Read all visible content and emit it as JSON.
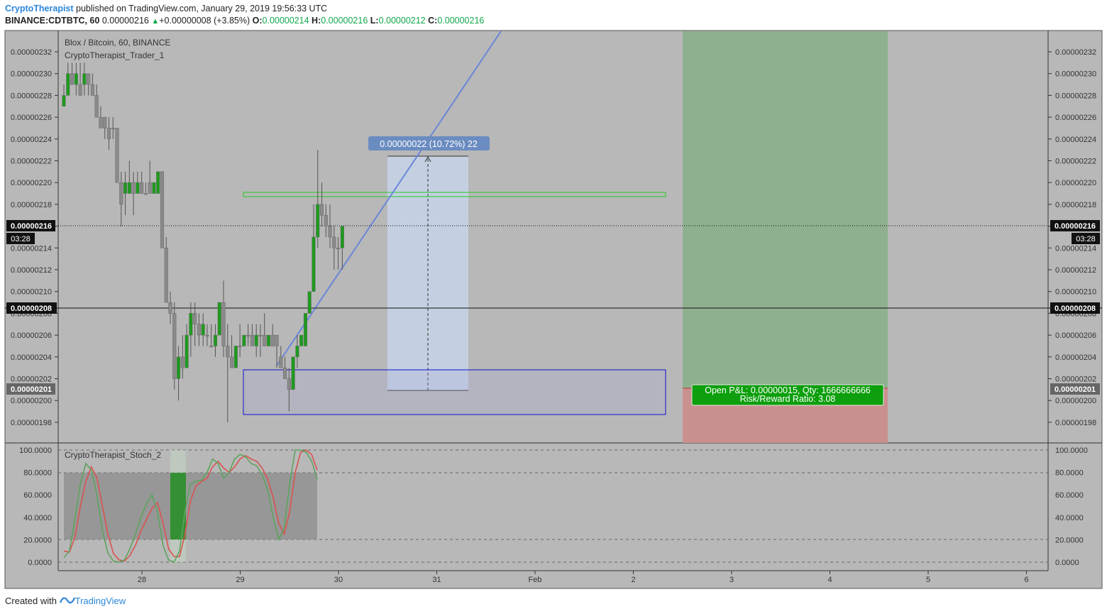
{
  "header": {
    "author": "CryptoTherapist",
    "published": "published on TradingView.com, January 29, 2019 19:56:33 UTC",
    "symbol": "BINANCE:CDTBTC, 60",
    "last": "0.00000216",
    "change": "+0.00000008 (+3.85%)",
    "o_label": "O:",
    "o": "0.00000214",
    "h_label": "H:",
    "h": "0.00000216",
    "l_label": "L:",
    "l": "0.00000212",
    "c_label": "C:",
    "c": "0.00000216"
  },
  "footer": {
    "created": "Created with",
    "brand": "TradingView"
  },
  "main_pane": {
    "title": "Blox / Bitcoin, 60, BINANCE",
    "indicator": "CryptoTherapist_Trader_1",
    "price_ticks": [
      "0.00000232",
      "0.00000230",
      "0.00000228",
      "0.00000226",
      "0.00000224",
      "0.00000222",
      "0.00000220",
      "0.00000218",
      "0.00000216",
      "0.00000214",
      "0.00000212",
      "0.00000210",
      "0.00000208",
      "0.00000206",
      "0.00000204",
      "0.00000202",
      "0.00000200",
      "0.00000198"
    ],
    "current_price_label": "0.00000216",
    "countdown": "03:28",
    "level_label": "0.00000208",
    "entry_label": "0.00000201",
    "measure_label": "0.00000022 (10.72%) 22",
    "pnl_line1": "Open P&L: 0.00000015, Qty: 1666666666",
    "pnl_line2": "Risk/Reward Ratio: 3.08"
  },
  "sub_pane": {
    "indicator": "CryptoTherapist_Stoch_2",
    "ticks": [
      "100.0000",
      "80.0000",
      "60.0000",
      "40.0000",
      "20.0000",
      "0.0000"
    ]
  },
  "x_axis": {
    "ticks": [
      "28",
      "29",
      "30",
      "31",
      "Feb",
      "2",
      "3",
      "4",
      "5",
      "6"
    ]
  },
  "colors": {
    "background": "#b8b8b8",
    "candle_down": "#8a8a8a",
    "candle_up": "#1e9a1e",
    "stoch_k": "#5ea35e",
    "stoch_d": "#d9534f",
    "target_zone": "#8fb08f",
    "stop_zone": "#c99090",
    "pnl_box": "#0d9f0d",
    "measure_fill": "#c8d8f0",
    "measure_label": "#6a8cc0",
    "trendline": "#6b86d8"
  },
  "chart_data": {
    "type": "candlestick",
    "title": "Blox / Bitcoin, 60, BINANCE",
    "ylim": [
      1.96e-06,
      2.34e-06
    ],
    "candles_ohlc": [
      [
        2.27e-06,
        2.29e-06,
        2.27e-06,
        2.28e-06
      ],
      [
        2.28e-06,
        2.31e-06,
        2.28e-06,
        2.3e-06
      ],
      [
        2.3e-06,
        2.31e-06,
        2.29e-06,
        2.29e-06
      ],
      [
        2.29e-06,
        2.31e-06,
        2.28e-06,
        2.3e-06
      ],
      [
        2.29e-06,
        2.31e-06,
        2.28e-06,
        2.28e-06
      ],
      [
        2.29e-06,
        2.31e-06,
        2.28e-06,
        2.3e-06
      ],
      [
        2.3e-06,
        2.3e-06,
        2.28e-06,
        2.29e-06
      ],
      [
        2.29e-06,
        2.3e-06,
        2.28e-06,
        2.28e-06
      ],
      [
        2.28e-06,
        2.29e-06,
        2.26e-06,
        2.26e-06
      ],
      [
        2.26e-06,
        2.27e-06,
        2.25e-06,
        2.25e-06
      ],
      [
        2.26e-06,
        2.26e-06,
        2.24e-06,
        2.25e-06
      ],
      [
        2.25e-06,
        2.26e-06,
        2.23e-06,
        2.24e-06
      ],
      [
        2.25e-06,
        2.26e-06,
        2.24e-06,
        2.25e-06
      ],
      [
        2.25e-06,
        2.25e-06,
        2.2e-06,
        2.2e-06
      ],
      [
        2.2e-06,
        2.21e-06,
        2.16e-06,
        2.18e-06
      ],
      [
        2.19e-06,
        2.21e-06,
        2.17e-06,
        2.2e-06
      ],
      [
        2.19e-06,
        2.22e-06,
        2.19e-06,
        2.2e-06
      ],
      [
        2.2e-06,
        2.21e-06,
        2.17e-06,
        2.19e-06
      ],
      [
        2.19e-06,
        2.21e-06,
        2.19e-06,
        2.2e-06
      ],
      [
        2.2e-06,
        2.21e-06,
        2.19e-06,
        2.19e-06
      ],
      [
        2.19e-06,
        2.2e-06,
        2.19e-06,
        2.19e-06
      ],
      [
        2.2e-06,
        2.22e-06,
        2.19e-06,
        2.19e-06
      ],
      [
        2.19e-06,
        2.2e-06,
        2.19e-06,
        2.2e-06
      ],
      [
        2.19e-06,
        2.21e-06,
        2.19e-06,
        2.21e-06
      ],
      [
        2.21e-06,
        2.21e-06,
        2.14e-06,
        2.14e-06
      ],
      [
        2.14e-06,
        2.15e-06,
        2.09e-06,
        2.09e-06
      ],
      [
        2.09e-06,
        2.1e-06,
        2.07e-06,
        2.08e-06
      ],
      [
        2.08e-06,
        2.09e-06,
        2.01e-06,
        2.02e-06
      ],
      [
        2.02e-06,
        2.05e-06,
        2e-06,
        2.04e-06
      ],
      [
        2.04e-06,
        2.06e-06,
        2.02e-06,
        2.03e-06
      ],
      [
        2.03e-06,
        2.07e-06,
        2.03e-06,
        2.06e-06
      ],
      [
        2.06e-06,
        2.09e-06,
        2.04e-06,
        2.08e-06
      ],
      [
        2.08e-06,
        2.09e-06,
        2.05e-06,
        2.07e-06
      ],
      [
        2.07e-06,
        2.08e-06,
        2.05e-06,
        2.06e-06
      ],
      [
        2.06e-06,
        2.08e-06,
        2.05e-06,
        2.07e-06
      ],
      [
        2.06e-06,
        2.07e-06,
        2.05e-06,
        2.06e-06
      ],
      [
        2.05e-06,
        2.07e-06,
        2.05e-06,
        2.05e-06
      ],
      [
        2.05e-06,
        2.07e-06,
        2.04e-06,
        2.06e-06
      ],
      [
        2.06e-06,
        2.09e-06,
        2.06e-06,
        2.09e-06
      ],
      [
        2.09e-06,
        2.11e-06,
        2.04e-06,
        2.05e-06
      ],
      [
        2.05e-06,
        2.07e-06,
        1.98e-06,
        2.04e-06
      ],
      [
        2.04e-06,
        2.06e-06,
        2.03e-06,
        2.03e-06
      ],
      [
        2.03e-06,
        2.05e-06,
        2.03e-06,
        2.05e-06
      ],
      [
        2.05e-06,
        2.07e-06,
        2.04e-06,
        2.05e-06
      ],
      [
        2.05e-06,
        2.06e-06,
        2.05e-06,
        2.06e-06
      ],
      [
        2.06e-06,
        2.07e-06,
        2.05e-06,
        2.06e-06
      ],
      [
        2.06e-06,
        2.07e-06,
        2.05e-06,
        2.05e-06
      ],
      [
        2.05e-06,
        2.07e-06,
        2.04e-06,
        2.06e-06
      ],
      [
        2.06e-06,
        2.07e-06,
        2.04e-06,
        2.06e-06
      ],
      [
        2.06e-06,
        2.08e-06,
        2.05e-06,
        2.05e-06
      ],
      [
        2.05e-06,
        2.06e-06,
        2.05e-06,
        2.06e-06
      ],
      [
        2.06e-06,
        2.07e-06,
        2.05e-06,
        2.05e-06
      ],
      [
        2.06e-06,
        2.06e-06,
        2.03e-06,
        2.05e-06
      ],
      [
        2.04e-06,
        2.05e-06,
        2.03e-06,
        2.03e-06
      ],
      [
        2.03e-06,
        2.04e-06,
        2.02e-06,
        2.02e-06
      ],
      [
        2.02e-06,
        2.03e-06,
        1.99e-06,
        2.01e-06
      ],
      [
        2.01e-06,
        2.04e-06,
        2.01e-06,
        2.04e-06
      ],
      [
        2.04e-06,
        2.06e-06,
        2.03e-06,
        2.05e-06
      ],
      [
        2.05e-06,
        2.06e-06,
        2.05e-06,
        2.06e-06
      ],
      [
        2.05e-06,
        2.08e-06,
        2.05e-06,
        2.08e-06
      ],
      [
        2.08e-06,
        2.1e-06,
        2.08e-06,
        2.1e-06
      ],
      [
        2.1e-06,
        2.18e-06,
        2.1e-06,
        2.15e-06
      ],
      [
        2.15e-06,
        2.23e-06,
        2.14e-06,
        2.18e-06
      ],
      [
        2.18e-06,
        2.2e-06,
        2.16e-06,
        2.17e-06
      ],
      [
        2.17e-06,
        2.18e-06,
        2.15e-06,
        2.16e-06
      ],
      [
        2.16e-06,
        2.18e-06,
        2.14e-06,
        2.15e-06
      ],
      [
        2.15e-06,
        2.16e-06,
        2.12e-06,
        2.14e-06
      ],
      [
        2.14e-06,
        2.15e-06,
        2.12e-06,
        2.14e-06
      ],
      [
        2.14e-06,
        2.16e-06,
        2.12e-06,
        2.16e-06
      ]
    ],
    "levels": {
      "current_price": 2.16e-06,
      "horizontal_line": 2.08e-06,
      "entry": 2.01e-06,
      "resistance_zone": [
        2.18e-06,
        2.19e-06
      ],
      "support_zone": [
        1.986e-06,
        2.026e-06
      ],
      "measure_range": [
        2.01e-06,
        2.23e-06
      ]
    },
    "stochastic": {
      "name": "CryptoTherapist_Stoch_2",
      "k": [
        4,
        10,
        38,
        70,
        88,
        82,
        60,
        28,
        8,
        1,
        0,
        2,
        12,
        25,
        40,
        52,
        60,
        45,
        15,
        2,
        0,
        10,
        45,
        70,
        72,
        73,
        80,
        92,
        88,
        75,
        80,
        92,
        96,
        94,
        88,
        86,
        78,
        65,
        40,
        20,
        30,
        70,
        100,
        100,
        98,
        90,
        74
      ],
      "d": [
        10,
        9,
        22,
        50,
        72,
        85,
        75,
        50,
        25,
        8,
        2,
        1,
        6,
        15,
        28,
        38,
        48,
        53,
        35,
        12,
        5,
        5,
        25,
        55,
        68,
        72,
        75,
        85,
        90,
        84,
        80,
        85,
        92,
        95,
        92,
        90,
        84,
        74,
        58,
        35,
        25,
        45,
        80,
        98,
        100,
        96,
        82
      ],
      "ylim": [
        0,
        100
      ]
    }
  }
}
